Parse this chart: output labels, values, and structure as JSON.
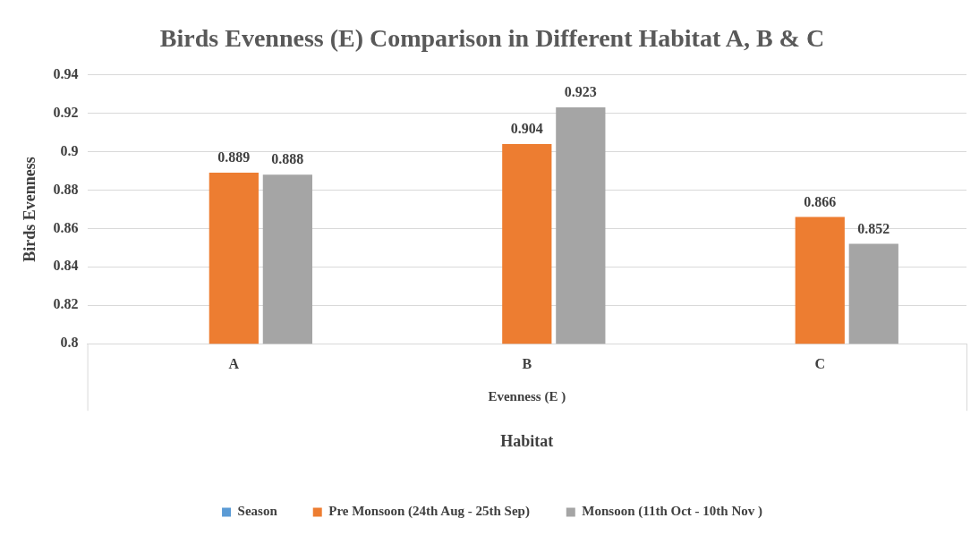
{
  "chart_data": {
    "type": "bar",
    "title": "Birds Evenness (E) Comparison in Different Habitat A, B & C",
    "xlabel": "Habitat",
    "ylabel": "Birds Evenness",
    "annotations": [
      "Evenness (E )"
    ],
    "categories": [
      "A",
      "B",
      "C"
    ],
    "series": [
      {
        "name": "Season",
        "color": "#5b9bd5",
        "values": [
          null,
          null,
          null
        ]
      },
      {
        "name": "Pre Monsoon (24th Aug - 25th Sep)",
        "color": "#ed7d31",
        "values": [
          0.889,
          0.904,
          0.866
        ]
      },
      {
        "name": "Monsoon (11th Oct - 10th Nov )",
        "color": "#a5a5a5",
        "values": [
          0.888,
          0.923,
          0.852
        ]
      }
    ],
    "ylim": [
      0.8,
      0.94
    ],
    "yticks": [
      0.8,
      0.82,
      0.84,
      0.86,
      0.88,
      0.9,
      0.92,
      0.94
    ],
    "grid": "y",
    "legend": "bottom",
    "data_labels": true
  }
}
